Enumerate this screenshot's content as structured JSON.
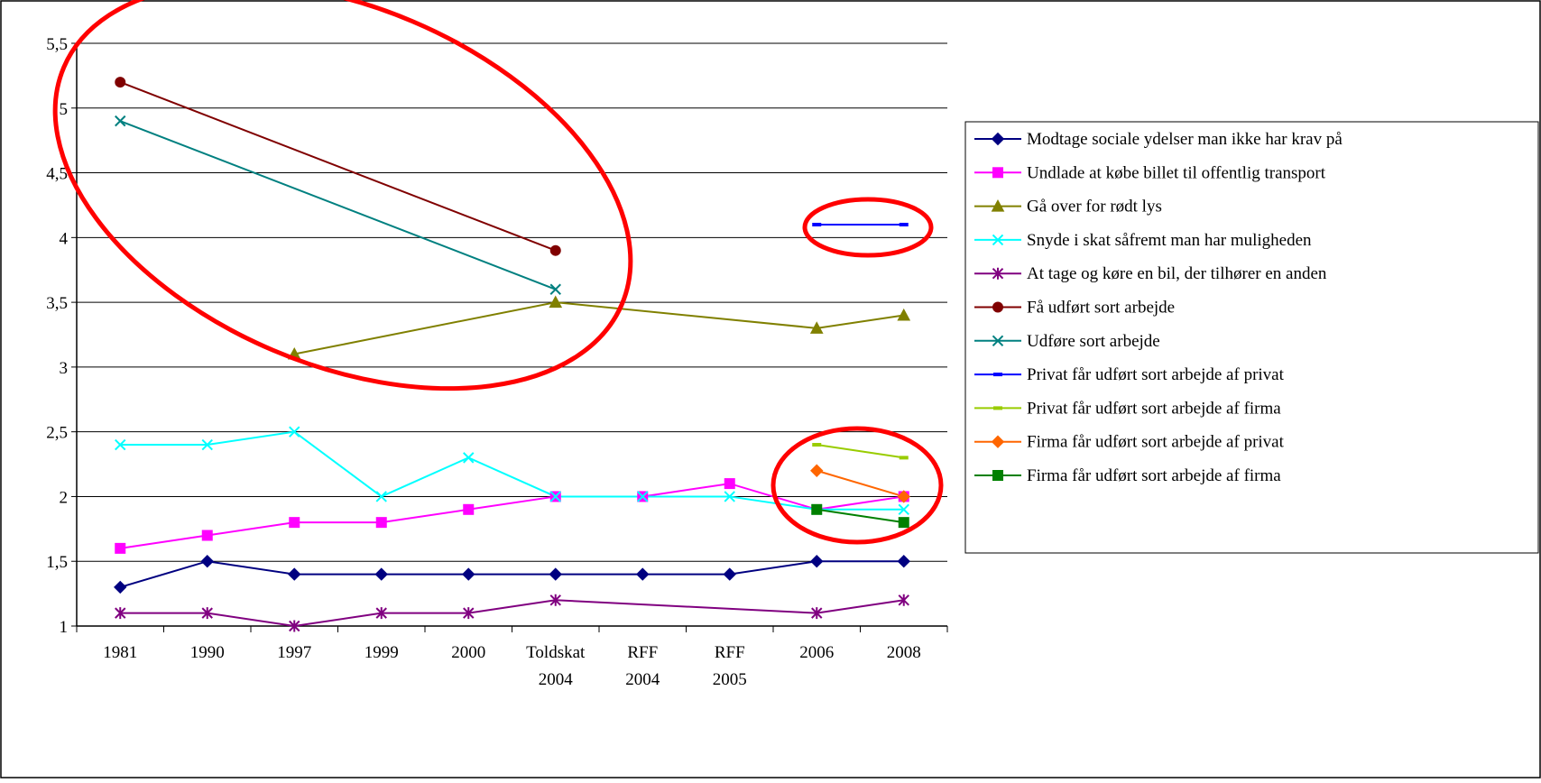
{
  "chart_data": {
    "type": "line",
    "categories": [
      "1981",
      "1990",
      "1997",
      "1999",
      "2000",
      "Toldskat 2004",
      "RFF 2004",
      "RFF 2005",
      "2006",
      "2008"
    ],
    "category_label_lines": [
      [
        "1981"
      ],
      [
        "1990"
      ],
      [
        "1997"
      ],
      [
        "1999"
      ],
      [
        "2000"
      ],
      [
        "Toldskat",
        "2004"
      ],
      [
        "RFF",
        "2004"
      ],
      [
        "RFF",
        "2005"
      ],
      [
        "2006"
      ],
      [
        "2008"
      ]
    ],
    "ylim": [
      1,
      5.5
    ],
    "yticks": [
      1,
      1.5,
      2,
      2.5,
      3,
      3.5,
      4,
      4.5,
      5,
      5.5
    ],
    "ytick_labels": [
      "1",
      "1,5",
      "2",
      "2,5",
      "3",
      "3,5",
      "4",
      "4,5",
      "5",
      "5,5"
    ],
    "grid": true,
    "legend_position": "right",
    "series": [
      {
        "name": "Modtage sociale ydelser man ikke har krav på",
        "color": "#000080",
        "marker": "diamond",
        "values": [
          1.3,
          1.5,
          1.4,
          1.4,
          1.4,
          1.4,
          1.4,
          1.4,
          1.5,
          1.5
        ],
        "marker_mask": [
          1,
          1,
          1,
          1,
          1,
          1,
          1,
          1,
          1,
          1
        ]
      },
      {
        "name": "Undlade at købe billet til offentlig transport",
        "color": "#FF00FF",
        "marker": "square",
        "values": [
          1.6,
          1.7,
          1.8,
          1.8,
          1.9,
          2.0,
          2.0,
          2.1,
          1.9,
          2.0
        ],
        "marker_mask": [
          1,
          1,
          1,
          1,
          1,
          1,
          1,
          1,
          0,
          1
        ]
      },
      {
        "name": "Gå over for rødt lys",
        "color": "#808000",
        "marker": "triangle",
        "values": [
          null,
          null,
          3.1,
          null,
          null,
          3.5,
          null,
          null,
          3.3,
          3.4
        ],
        "marker_mask": [
          0,
          0,
          1,
          0,
          0,
          1,
          0,
          0,
          1,
          1
        ]
      },
      {
        "name": "Snyde i skat såfremt man har muligheden",
        "color": "#00FFFF",
        "marker": "x",
        "values": [
          2.4,
          2.4,
          2.5,
          2.0,
          2.3,
          2.0,
          2.0,
          2.0,
          1.9,
          1.9
        ],
        "marker_mask": [
          1,
          1,
          1,
          1,
          1,
          1,
          1,
          1,
          1,
          1
        ]
      },
      {
        "name": "At tage og køre en bil, der tilhører en anden",
        "color": "#800080",
        "marker": "star",
        "values": [
          1.1,
          1.1,
          1.0,
          1.1,
          1.1,
          1.2,
          null,
          null,
          1.1,
          1.2
        ],
        "marker_mask": [
          1,
          1,
          1,
          1,
          1,
          1,
          0,
          0,
          1,
          1
        ]
      },
      {
        "name": "Få udført sort arbejde",
        "color": "#800000",
        "marker": "circle",
        "values": [
          5.2,
          null,
          null,
          null,
          null,
          3.9,
          null,
          null,
          null,
          null
        ],
        "marker_mask": [
          1,
          0,
          0,
          0,
          0,
          1,
          0,
          0,
          0,
          0
        ]
      },
      {
        "name": "Udføre sort arbejde",
        "color": "#008080",
        "marker": "x",
        "values": [
          4.9,
          null,
          null,
          null,
          null,
          3.6,
          null,
          null,
          null,
          null
        ],
        "marker_mask": [
          1,
          0,
          0,
          0,
          0,
          1,
          0,
          0,
          0,
          0
        ]
      },
      {
        "name": "Privat får udført sort arbejde af privat",
        "color": "#0000FF",
        "marker": "dash",
        "values": [
          null,
          null,
          null,
          null,
          null,
          null,
          null,
          null,
          4.1,
          4.1
        ],
        "marker_mask": [
          0,
          0,
          0,
          0,
          0,
          0,
          0,
          0,
          1,
          1
        ]
      },
      {
        "name": "Privat får udført sort arbejde af firma",
        "color": "#99CC00",
        "marker": "dash",
        "values": [
          null,
          null,
          null,
          null,
          null,
          null,
          null,
          null,
          2.4,
          2.3
        ],
        "marker_mask": [
          0,
          0,
          0,
          0,
          0,
          0,
          0,
          0,
          1,
          1
        ]
      },
      {
        "name": "Firma får udført sort arbejde af privat",
        "color": "#FF6600",
        "marker": "diamond",
        "values": [
          null,
          null,
          null,
          null,
          null,
          null,
          null,
          null,
          2.2,
          2.0
        ],
        "marker_mask": [
          0,
          0,
          0,
          0,
          0,
          0,
          0,
          0,
          1,
          1
        ]
      },
      {
        "name": "Firma får udført sort arbejde af firma",
        "color": "#008000",
        "marker": "square",
        "values": [
          null,
          null,
          null,
          null,
          null,
          null,
          null,
          null,
          1.9,
          1.8
        ],
        "marker_mask": [
          0,
          0,
          0,
          0,
          0,
          0,
          0,
          0,
          1,
          1
        ]
      }
    ],
    "annotations": [
      {
        "type": "ellipse",
        "color": "#FF0000",
        "highlights": [
          "Få udført sort arbejde",
          "Udføre sort arbejde"
        ]
      },
      {
        "type": "ellipse",
        "color": "#FF0000",
        "highlights": [
          "Privat får udført sort arbejde af privat"
        ]
      },
      {
        "type": "ellipse",
        "color": "#FF0000",
        "highlights": [
          "Privat får udført sort arbejde af firma",
          "Firma får udført sort arbejde af privat",
          "Firma får udført sort arbejde af firma"
        ]
      }
    ]
  }
}
